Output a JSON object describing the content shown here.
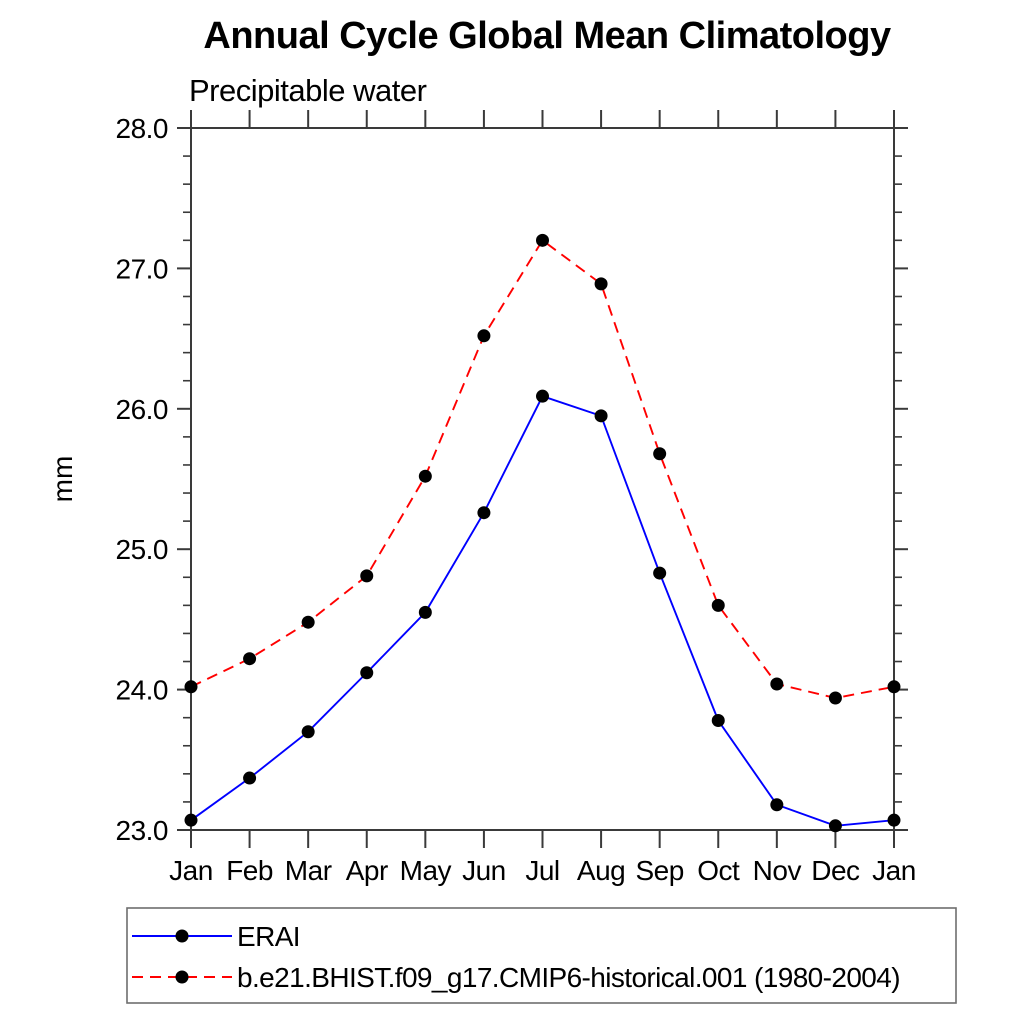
{
  "chart_data": {
    "type": "line",
    "title": "Annual Cycle Global Mean Climatology",
    "subtitle": "Precipitable water",
    "ylabel": "mm",
    "categories": [
      "Jan",
      "Feb",
      "Mar",
      "Apr",
      "May",
      "Jun",
      "Jul",
      "Aug",
      "Sep",
      "Oct",
      "Nov",
      "Dec",
      "Jan"
    ],
    "ylim": [
      23.0,
      28.0
    ],
    "ytick_labels": [
      "23.0",
      "24.0",
      "25.0",
      "26.0",
      "27.0",
      "28.0"
    ],
    "ytick_values": [
      23.0,
      24.0,
      25.0,
      26.0,
      27.0,
      28.0
    ],
    "y_minor_step": 0.2,
    "grid": false,
    "legend_position": "bottom",
    "series": [
      {
        "name": "ERAI",
        "color": "#0000ff",
        "line_style": "solid",
        "marker": "black-dot",
        "values": [
          23.07,
          23.37,
          23.7,
          24.12,
          24.55,
          25.26,
          26.09,
          25.95,
          24.83,
          23.78,
          23.18,
          23.03,
          23.07
        ]
      },
      {
        "name": "b.e21.BHIST.f09_g17.CMIP6-historical.001 (1980-2004)",
        "color": "#ff0000",
        "line_style": "dashed",
        "marker": "black-dot",
        "values": [
          24.02,
          24.22,
          24.48,
          24.81,
          25.52,
          26.52,
          27.2,
          26.89,
          25.68,
          24.6,
          24.04,
          23.94,
          24.02
        ]
      }
    ],
    "marker_color": "#000000",
    "frame_color": "#3a3a3a",
    "legend_border_color": "#6e6e6e"
  }
}
